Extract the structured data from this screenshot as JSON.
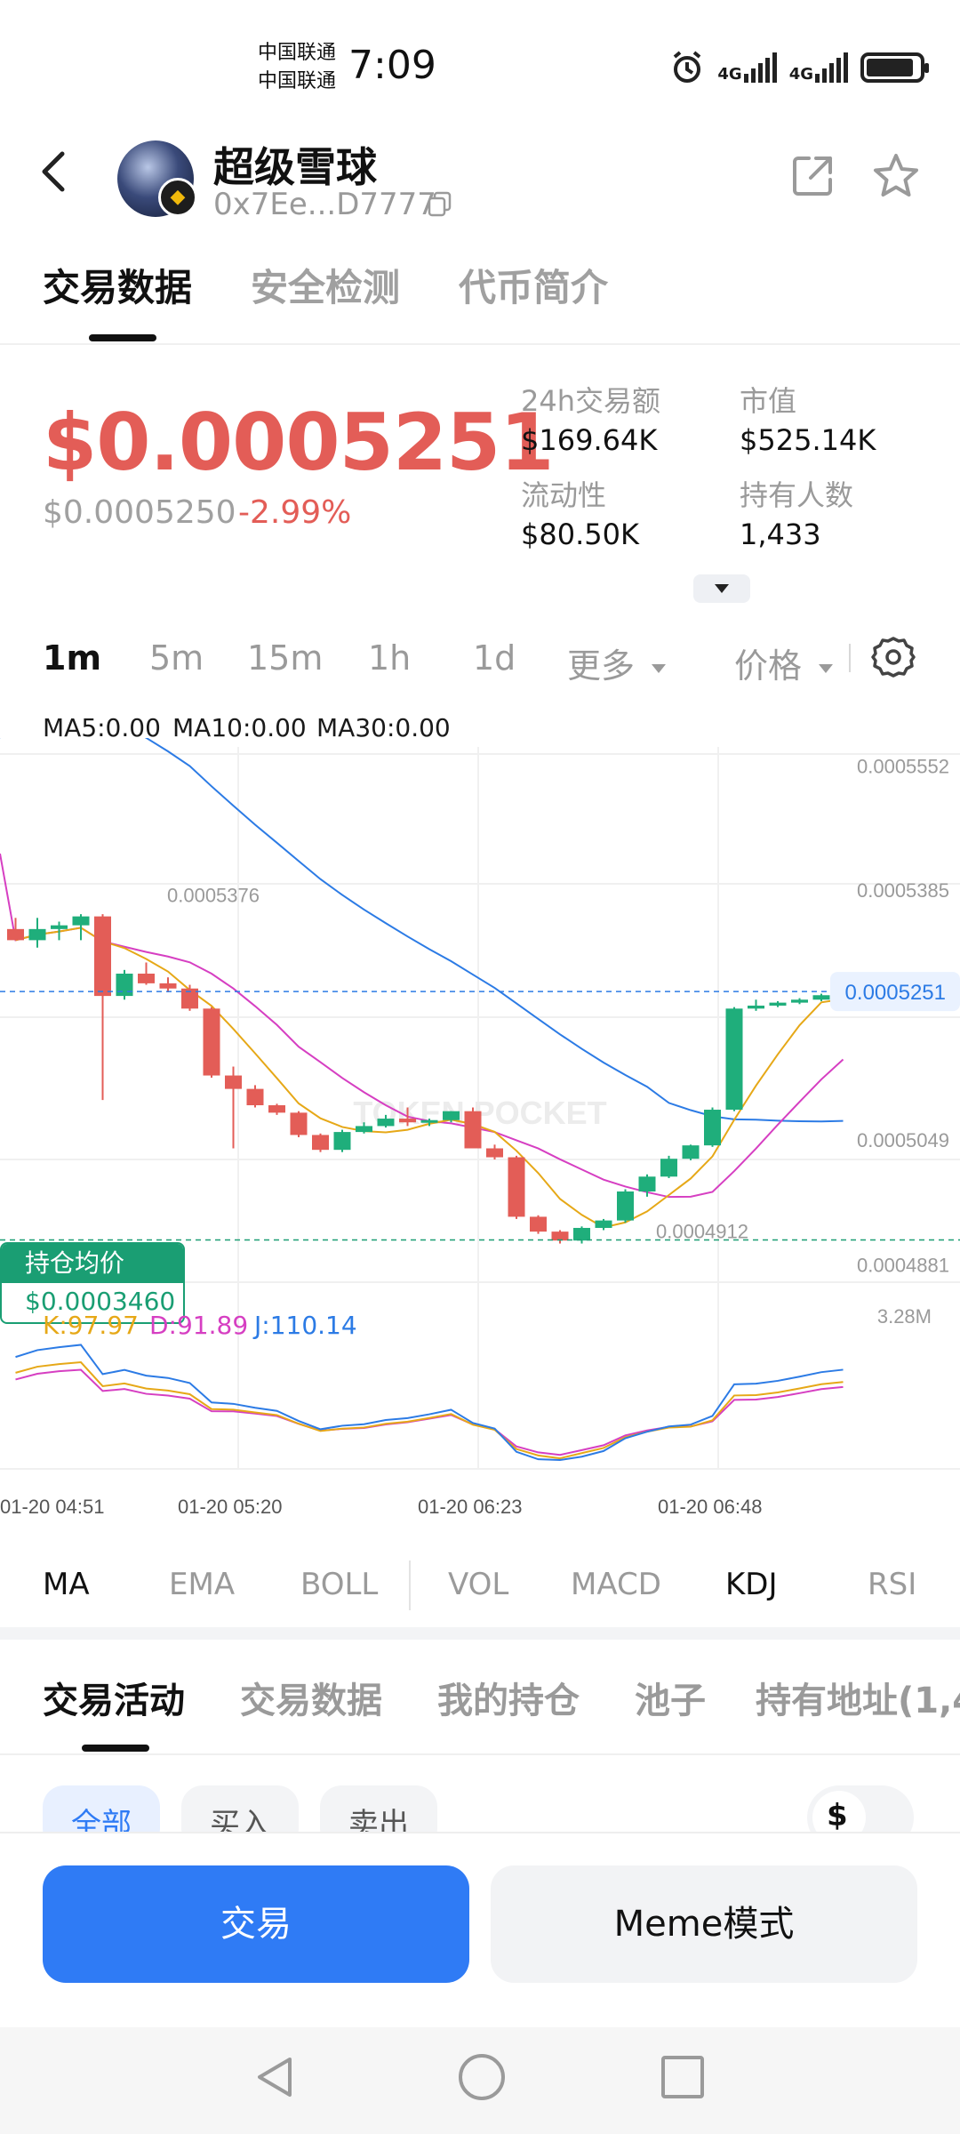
{
  "status_bar": {
    "carrier_1": "中国联通",
    "carrier_2": "中国联通",
    "time": "7:09",
    "net_1": "4G",
    "net_2": "4G"
  },
  "header": {
    "token_name": "超级雪球",
    "token_address": "0x7Ee...D7777"
  },
  "top_tabs": [
    "交易数据",
    "安全检测",
    "代币简介"
  ],
  "price": {
    "current": "$0.0005251",
    "sub_price": "$0.0005250",
    "change_pct": "-2.99%"
  },
  "stats": {
    "volume_24h_label": "24h交易额",
    "volume_24h_value": "$169.64K",
    "market_cap_label": "市值",
    "market_cap_value": "$525.14K",
    "liquidity_label": "流动性",
    "liquidity_value": "$80.50K",
    "holders_label": "持有人数",
    "holders_value": "1,433"
  },
  "timeframes": [
    "1m",
    "5m",
    "15m",
    "1h",
    "1d"
  ],
  "more_label": "更多",
  "price_toggle_label": "价格",
  "ma_legend": {
    "ma5": "MA5:0.00",
    "ma10": "MA10:0.00",
    "ma30": "MA30:0.00"
  },
  "chart_data": {
    "type": "candlestick",
    "y_axis_labels": [
      "0.0005552",
      "0.0005385",
      "0.0005251",
      "0.0005049",
      "0.0004881"
    ],
    "current_price_label": "0.0005251",
    "high_marker": "0.0005376",
    "low_marker": "0.0004912",
    "avg_cost_label": "持仓均价",
    "avg_cost_value": "$0.0003460",
    "watermark": "TOKEN POCKET",
    "candles": [
      {
        "o": 0.0005335,
        "h": 0.000535,
        "l": 0.000532,
        "c": 0.000532
      },
      {
        "o": 0.000532,
        "h": 0.000535,
        "l": 0.000531,
        "c": 0.0005335
      },
      {
        "o": 0.0005335,
        "h": 0.0005345,
        "l": 0.000532,
        "c": 0.000534
      },
      {
        "o": 0.000534,
        "h": 0.0005355,
        "l": 0.000532,
        "c": 0.0005352
      },
      {
        "o": 0.0005352,
        "h": 0.0005355,
        "l": 0.0005105,
        "c": 0.0005245
      },
      {
        "o": 0.0005245,
        "h": 0.000528,
        "l": 0.000524,
        "c": 0.0005275
      },
      {
        "o": 0.0005275,
        "h": 0.000529,
        "l": 0.000526,
        "c": 0.0005262
      },
      {
        "o": 0.0005262,
        "h": 0.000527,
        "l": 0.000525,
        "c": 0.0005255
      },
      {
        "o": 0.0005255,
        "h": 0.000526,
        "l": 0.0005225,
        "c": 0.0005228
      },
      {
        "o": 0.0005228,
        "h": 0.000523,
        "l": 0.0005135,
        "c": 0.0005138
      },
      {
        "o": 0.0005138,
        "h": 0.000515,
        "l": 0.000504,
        "c": 0.000512
      },
      {
        "o": 0.000512,
        "h": 0.0005125,
        "l": 0.0005095,
        "c": 0.0005098
      },
      {
        "o": 0.0005098,
        "h": 0.00051,
        "l": 0.0005085,
        "c": 0.0005088
      },
      {
        "o": 0.0005088,
        "h": 0.000509,
        "l": 0.0005055,
        "c": 0.0005058
      },
      {
        "o": 0.0005058,
        "h": 0.000506,
        "l": 0.0005035,
        "c": 0.0005038
      },
      {
        "o": 0.0005038,
        "h": 0.0005065,
        "l": 0.0005035,
        "c": 0.0005062
      },
      {
        "o": 0.0005062,
        "h": 0.0005075,
        "l": 0.000506,
        "c": 0.000507
      },
      {
        "o": 0.000507,
        "h": 0.0005085,
        "l": 0.0005068,
        "c": 0.000508
      },
      {
        "o": 0.000508,
        "h": 0.0005095,
        "l": 0.000507,
        "c": 0.0005075
      },
      {
        "o": 0.0005075,
        "h": 0.000508,
        "l": 0.000507,
        "c": 0.0005078
      },
      {
        "o": 0.0005078,
        "h": 0.000509,
        "l": 0.0005075,
        "c": 0.000509
      },
      {
        "o": 0.000509,
        "h": 0.0005095,
        "l": 0.000504,
        "c": 0.000504
      },
      {
        "o": 0.000504,
        "h": 0.0005045,
        "l": 0.0005025,
        "c": 0.0005028
      },
      {
        "o": 0.0005028,
        "h": 0.000503,
        "l": 0.0004945,
        "c": 0.0004948
      },
      {
        "o": 0.0004948,
        "h": 0.000495,
        "l": 0.0004925,
        "c": 0.0004928
      },
      {
        "o": 0.0004928,
        "h": 0.000493,
        "l": 0.0004912,
        "c": 0.0004916
      },
      {
        "o": 0.0004916,
        "h": 0.0004935,
        "l": 0.0004912,
        "c": 0.0004933
      },
      {
        "o": 0.0004933,
        "h": 0.0004945,
        "l": 0.000493,
        "c": 0.0004943
      },
      {
        "o": 0.0004943,
        "h": 0.0004985,
        "l": 0.000494,
        "c": 0.0004982
      },
      {
        "o": 0.0004982,
        "h": 0.0005005,
        "l": 0.0004975,
        "c": 0.0005002
      },
      {
        "o": 0.0005002,
        "h": 0.000503,
        "l": 0.0005,
        "c": 0.0005026
      },
      {
        "o": 0.0005026,
        "h": 0.0005045,
        "l": 0.0005024,
        "c": 0.0005044
      },
      {
        "o": 0.0005044,
        "h": 0.0005095,
        "l": 0.0005042,
        "c": 0.0005092
      },
      {
        "o": 0.0005092,
        "h": 0.000523,
        "l": 0.000509,
        "c": 0.0005228
      },
      {
        "o": 0.0005228,
        "h": 0.000524,
        "l": 0.0005225,
        "c": 0.0005232
      },
      {
        "o": 0.0005232,
        "h": 0.0005238,
        "l": 0.000523,
        "c": 0.0005236
      },
      {
        "o": 0.0005236,
        "h": 0.0005242,
        "l": 0.0005234,
        "c": 0.000524
      },
      {
        "o": 0.000524,
        "h": 0.0005248,
        "l": 0.0005238,
        "c": 0.0005246
      },
      {
        "o": 0.0005246,
        "h": 0.0005252,
        "l": 0.0005244,
        "c": 0.000525
      }
    ],
    "kdj_legend": {
      "k": "K:97.97",
      "d": "D:91.89",
      "j": "J:110.14"
    },
    "vol_label": "3.28M",
    "x_labels": [
      "01-20 04:51",
      "01-20 05:20",
      "01-20 06:23",
      "01-20 06:48"
    ]
  },
  "indicator_tabs": [
    "MA",
    "EMA",
    "BOLL",
    "VOL",
    "MACD",
    "KDJ",
    "RSI"
  ],
  "bottom_tabs": [
    "交易活动",
    "交易数据",
    "我的持仓",
    "池子",
    "持有地址(1,4"
  ],
  "filters": [
    "全部",
    "买入",
    "卖出"
  ],
  "currency_symbol": "$",
  "actions": {
    "trade_label": "交易",
    "meme_label": "Meme模式"
  },
  "colors": {
    "up": "#1fae7b",
    "down": "#e35d57",
    "ma5": "#e6a817",
    "ma10": "#d63fc2",
    "ma30": "#2c7be5",
    "accent": "#2f7bf5"
  }
}
